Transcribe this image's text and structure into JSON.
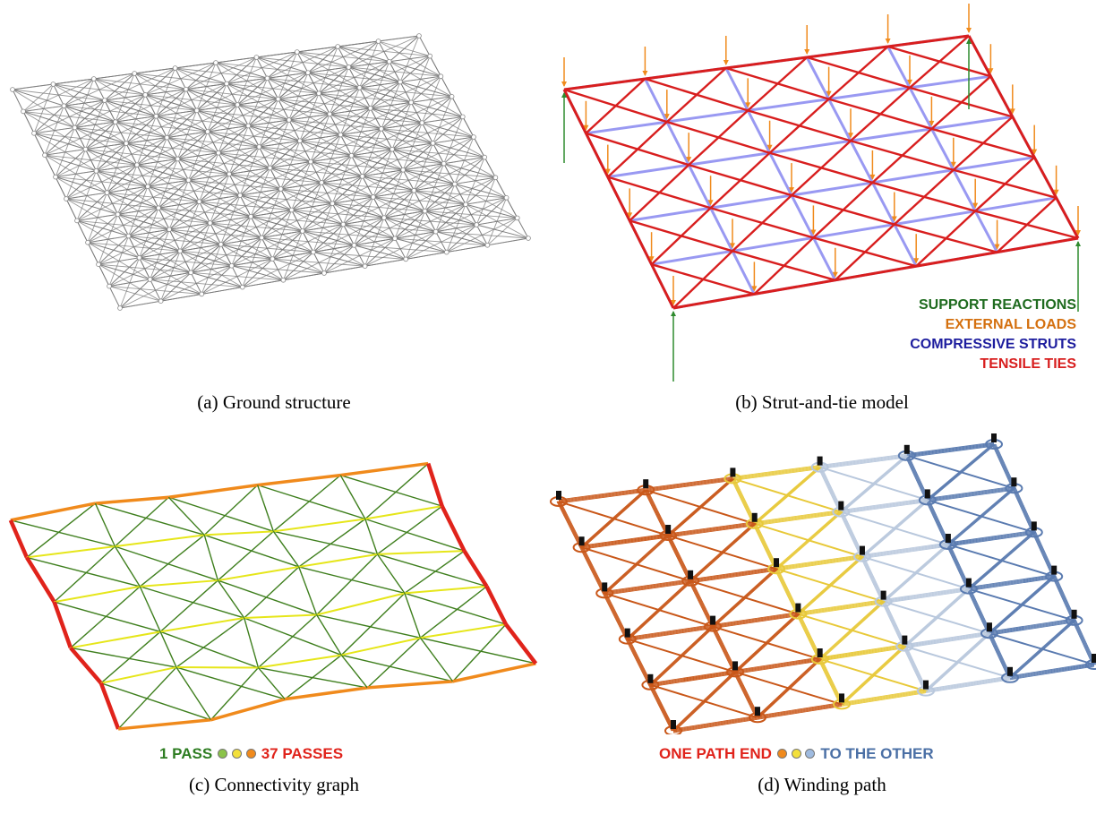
{
  "captions": {
    "a": "(a) Ground structure",
    "b": "(b) Strut-and-tie model",
    "c": "(c) Connectivity graph",
    "d": "(d) Winding path"
  },
  "legend_b": {
    "support": {
      "label": "SUPPORT REACTIONS",
      "color": "#1f6b1f"
    },
    "loads": {
      "label": "EXTERNAL LOADS",
      "color": "#d4700f"
    },
    "struts": {
      "label": "COMPRESSIVE STRUTS",
      "color": "#1d1d9e"
    },
    "ties": {
      "label": "TENSILE TIES",
      "color": "#d81e1e"
    }
  },
  "scale_c": {
    "low": "1 PASS",
    "high": "37 PASSES",
    "low_color": "#2e7d22",
    "high_color": "#e0231b",
    "dot_colors": [
      "#8bc34a",
      "#f3e03b",
      "#f08a1c"
    ]
  },
  "scale_d": {
    "start": "ONE PATH END",
    "end": "TO THE OTHER",
    "start_color": "#e0231b",
    "end_color": "#4a6fa5",
    "dot_colors": [
      "#f08a1c",
      "#f3e03b",
      "#9fbbe0"
    ]
  },
  "colors": {
    "ground": "#777777",
    "strut": "#7f7fef",
    "tie": "#d81e1e",
    "load": "#f08a1c",
    "support": "#2e8b2e",
    "conn_green": "#3f7f1e",
    "conn_yellow": "#e6e61a",
    "conn_orange": "#f08a1c",
    "conn_red": "#e0231b",
    "wind_orange": "#c9581a",
    "wind_yellow": "#e8c93a",
    "wind_blue": "#5a7bb0"
  }
}
